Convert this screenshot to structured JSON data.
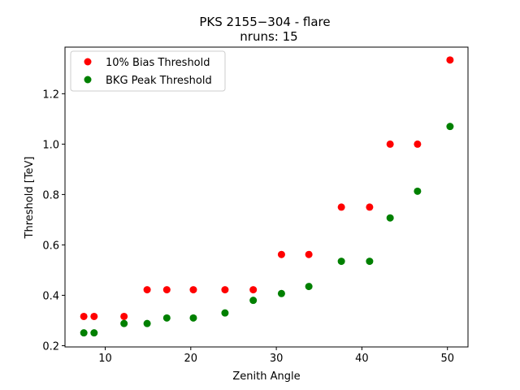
{
  "chart_data": {
    "type": "scatter",
    "title": "PKS 2155−304 - flare",
    "subtitle": "nruns: 15",
    "xlabel": "Zenith Angle",
    "ylabel": "Threshold [TeV]",
    "xlim": [
      5.3,
      52.4
    ],
    "ylim": [
      0.195,
      1.385
    ],
    "xticks": [
      10,
      20,
      30,
      40,
      50
    ],
    "yticks": [
      0.2,
      0.4,
      0.6,
      0.8,
      1.0,
      1.2
    ],
    "xtick_labels": [
      "10",
      "20",
      "30",
      "40",
      "50"
    ],
    "ytick_labels": [
      "0.2",
      "0.4",
      "0.6",
      "0.8",
      "1.0",
      "1.2"
    ],
    "grid": false,
    "legend_position": "top-left",
    "series": [
      {
        "name": "10% Bias Threshold",
        "color": "#ff0000",
        "x": [
          7.5,
          8.7,
          12.2,
          14.9,
          17.2,
          20.3,
          24.0,
          27.3,
          30.6,
          33.8,
          37.6,
          40.9,
          43.3,
          46.5,
          50.3
        ],
        "y": [
          0.316,
          0.316,
          0.316,
          0.422,
          0.422,
          0.422,
          0.422,
          0.422,
          0.562,
          0.562,
          0.75,
          0.75,
          1.0,
          1.0,
          1.334
        ]
      },
      {
        "name": "BKG Peak Threshold",
        "color": "#008000",
        "x": [
          7.5,
          8.7,
          12.2,
          14.9,
          17.2,
          20.3,
          24.0,
          27.3,
          30.6,
          33.8,
          37.6,
          40.9,
          43.3,
          46.5,
          50.3
        ],
        "y": [
          0.251,
          0.251,
          0.288,
          0.288,
          0.31,
          0.31,
          0.33,
          0.38,
          0.407,
          0.435,
          0.535,
          0.535,
          0.707,
          0.813,
          1.07
        ]
      }
    ]
  }
}
